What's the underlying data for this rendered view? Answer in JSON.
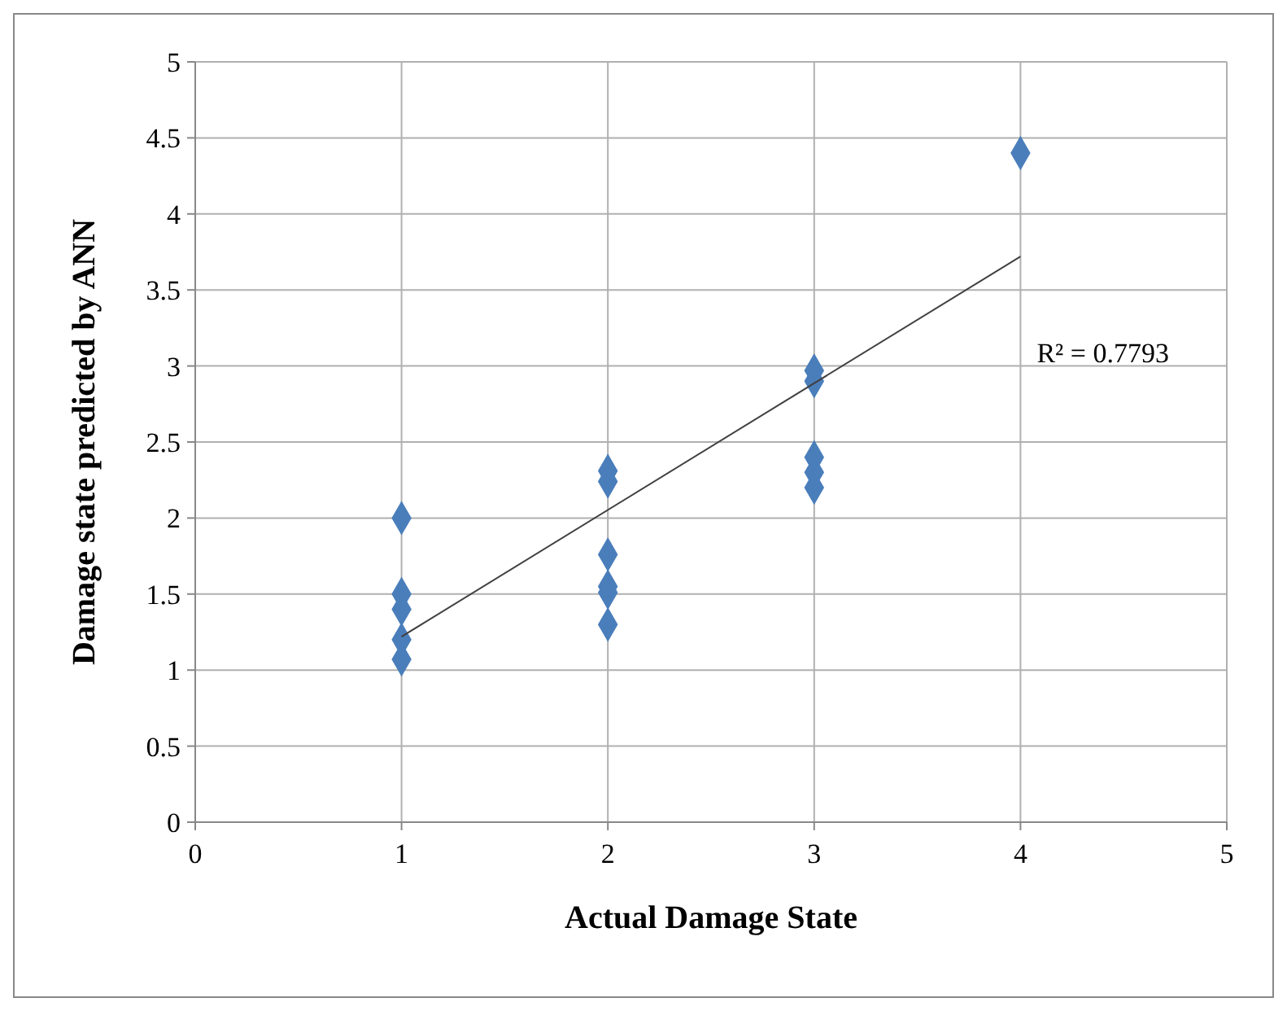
{
  "chart_data": {
    "type": "scatter",
    "xlabel": "Actual Damage State",
    "ylabel": "Damage state predicted by ANN",
    "series": [
      {
        "color": "#4a7ebb",
        "marker": "diamond",
        "x": [
          1,
          1,
          1,
          1,
          1,
          2,
          2,
          2,
          2,
          2,
          2,
          3,
          3,
          3,
          3,
          3,
          4
        ],
        "values": [
          2.0,
          1.5,
          1.4,
          1.2,
          1.07,
          2.31,
          2.24,
          1.76,
          1.55,
          1.51,
          1.3,
          2.97,
          2.9,
          2.4,
          2.3,
          2.2,
          4.4
        ]
      },
      {
        "type": "line",
        "color": "#404040",
        "marker": "none",
        "x": [
          1,
          4
        ],
        "values": [
          1.22,
          3.72
        ]
      }
    ],
    "annotations": [
      "R² = 0.7793"
    ],
    "xlim": [
      0,
      5
    ],
    "xticks": [
      0,
      1,
      2,
      3,
      4,
      5
    ],
    "ylim": [
      0,
      5
    ],
    "yticks": [
      0,
      0.5,
      1,
      1.5,
      2,
      2.5,
      3,
      3.5,
      4,
      4.5,
      5
    ],
    "grid": true
  }
}
